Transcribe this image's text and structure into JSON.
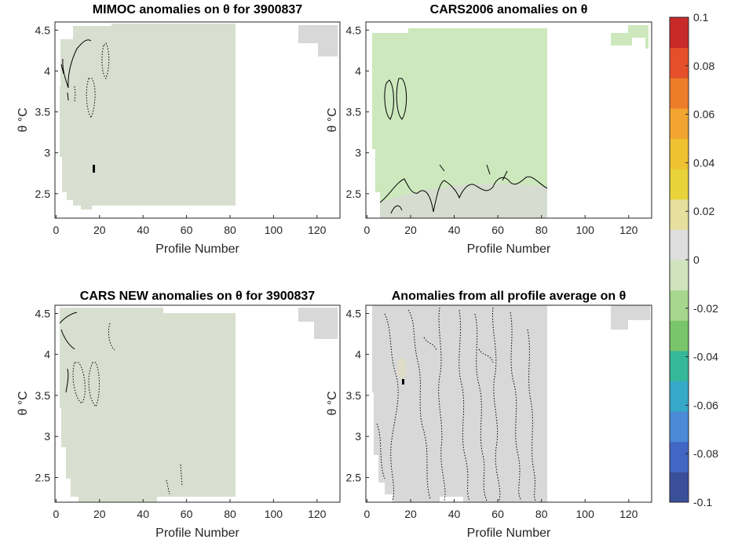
{
  "chart_data": {
    "type": "heatmap",
    "colorbar": {
      "limits": [
        -0.1,
        0.1
      ],
      "ticks": [
        "0.1",
        "0.08",
        "0.06",
        "0.04",
        "0.02",
        "0",
        "-0.02",
        "-0.04",
        "-0.06",
        "-0.08",
        "-0.1"
      ],
      "colors": [
        "#3a4f99",
        "#4166c4",
        "#4a8ad6",
        "#36a8c8",
        "#35b79a",
        "#79c56a",
        "#a7d68e",
        "#cfe3bd",
        "#dedede",
        "#e6df9e",
        "#e8d33a",
        "#eec231",
        "#f1a530",
        "#ee7d2a",
        "#e5502a",
        "#c82a2a"
      ]
    },
    "panels": [
      {
        "title": "MIMOC anomalies on θ  for 3900837",
        "xlabel": "Profile Number",
        "ylabel": "θ °C",
        "xlim": [
          -1,
          130
        ],
        "ylim": [
          2.2,
          4.6
        ],
        "xticks": [
          "0",
          "20",
          "40",
          "60",
          "80",
          "100",
          "120"
        ],
        "yticks": [
          "2.5",
          "3",
          "3.5",
          "4",
          "4.5"
        ],
        "fill_color": "#d8dfd0",
        "field_value": -0.01,
        "grid": false
      },
      {
        "title": "CARS2006 anomalies on θ",
        "xlabel": "Profile Number",
        "ylabel": "θ °C",
        "xlim": [
          -1,
          130
        ],
        "ylim": [
          2.2,
          4.6
        ],
        "xticks": [
          "0",
          "20",
          "40",
          "60",
          "80",
          "100",
          "120"
        ],
        "yticks": [
          "2.5",
          "3",
          "3.5",
          "4",
          "4.5"
        ],
        "fill_color": "#cde8bd",
        "field_value": -0.02,
        "grid": false
      },
      {
        "title": "CARS NEW anomalies on θ for 3900837",
        "xlabel": "Profile Number",
        "ylabel": "θ °C",
        "xlim": [
          -1,
          130
        ],
        "ylim": [
          2.2,
          4.6
        ],
        "xticks": [
          "0",
          "20",
          "40",
          "60",
          "80",
          "100",
          "120"
        ],
        "yticks": [
          "2.5",
          "3",
          "3.5",
          "4",
          "4.5"
        ],
        "fill_color": "#d8dfcf",
        "field_value": -0.01,
        "grid": false
      },
      {
        "title": "Anomalies from all profile average on θ",
        "xlabel": "Profile Number",
        "ylabel": "θ °C",
        "xlim": [
          -1,
          130
        ],
        "ylim": [
          2.2,
          4.6
        ],
        "xticks": [
          "0",
          "20",
          "40",
          "60",
          "80",
          "100",
          "120"
        ],
        "yticks": [
          "2.5",
          "3",
          "3.5",
          "4",
          "4.5"
        ],
        "fill_color": "#d8d8d8",
        "field_value": 0,
        "grid": false
      }
    ]
  }
}
